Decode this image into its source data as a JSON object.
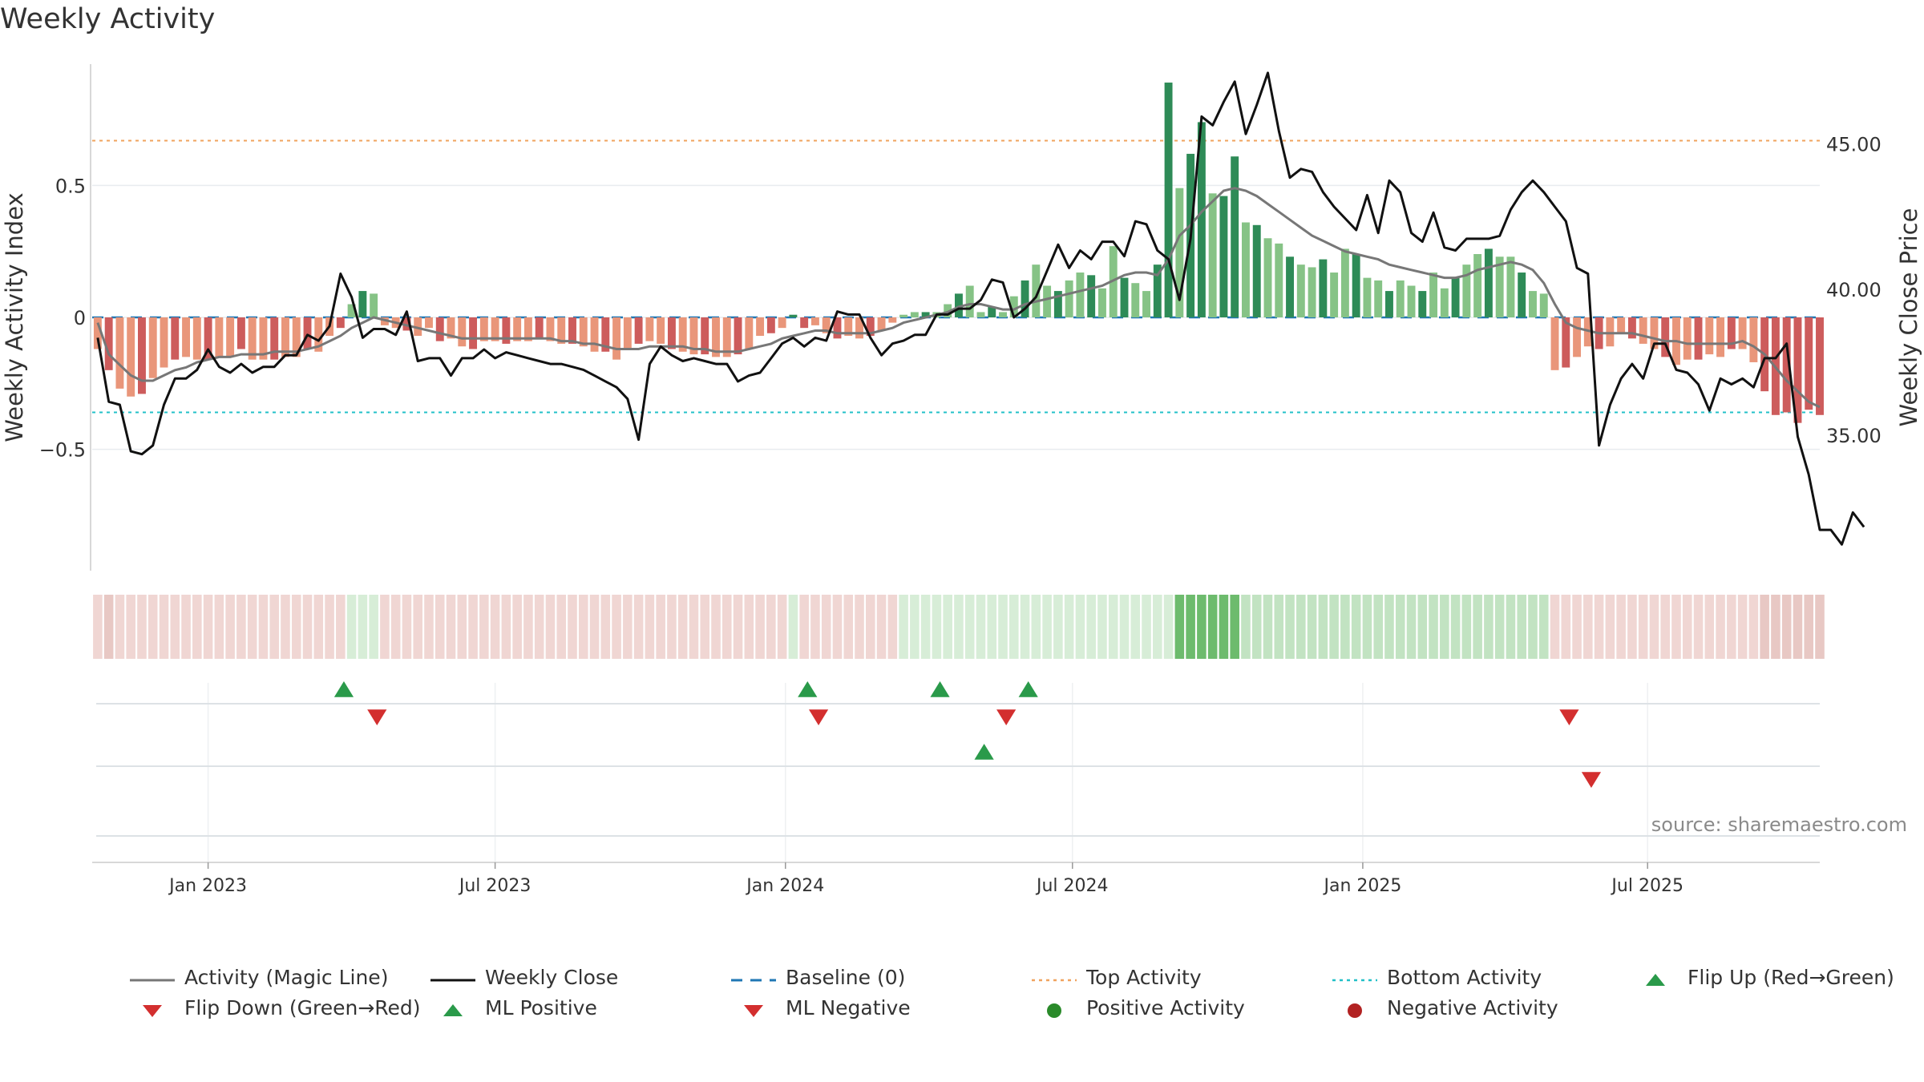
{
  "title": "Weekly Activity",
  "source": "source: sharemaestro.com",
  "colors": {
    "magic_line": "#777777",
    "close": "#111111",
    "baseline": "#1f77b4",
    "top": "#f0a35e",
    "bottom": "#22c0c8",
    "up": "#2a9a4a",
    "down": "#d32f2f",
    "pos_dark": "#2e8b57",
    "pos_light": "#86c386",
    "neg_dark": "#cd5c5c",
    "neg_light": "#e9967a"
  },
  "legend": [
    {
      "label": "Activity (Magic Line)",
      "kind": "line",
      "color": "#777777"
    },
    {
      "label": "Weekly Close",
      "kind": "line",
      "color": "#111111"
    },
    {
      "label": "Baseline (0)",
      "kind": "dash",
      "color": "#1f77b4"
    },
    {
      "label": "Top Activity",
      "kind": "dot",
      "color": "#f0a35e"
    },
    {
      "label": "Bottom Activity",
      "kind": "dot",
      "color": "#22c0c8"
    },
    {
      "label": "Flip Up (Red→Green)",
      "kind": "tri-up",
      "color": "#2a9a4a"
    },
    {
      "label": "Flip Down (Green→Red)",
      "kind": "tri-down",
      "color": "#d32f2f"
    },
    {
      "label": "ML Positive",
      "kind": "tri-up",
      "color": "#2a9a4a"
    },
    {
      "label": "ML Negative",
      "kind": "tri-down",
      "color": "#d32f2f"
    },
    {
      "label": "Positive Activity",
      "kind": "circle",
      "color": "#2a8a2a"
    },
    {
      "label": "Negative Activity",
      "kind": "circle",
      "color": "#b22222"
    }
  ],
  "chart_data": {
    "type": "bar",
    "title": "Weekly Activity",
    "ylabel": "Weekly Activity Index",
    "y2label": "Weekly Close Price",
    "ylim": [
      -0.96,
      0.96
    ],
    "y2lim": [
      30.7,
      48.1
    ],
    "yticks": [
      -0.5,
      0,
      0.5
    ],
    "ytick_labels": [
      "−0.5",
      "0",
      "0.5"
    ],
    "y2ticks": [
      35,
      40,
      45
    ],
    "y2tick_labels": [
      "35.00",
      "40.00",
      "45.00"
    ],
    "x_start": "2022-10-24",
    "x_end": "2025-09-15",
    "xticks": [
      "Jan 2023",
      "Jul 2023",
      "Jan 2024",
      "Jul 2024",
      "Jan 2025",
      "Jul 2025"
    ],
    "xtick_weeks": [
      10,
      36,
      62.3,
      88.3,
      114.6,
      140.4
    ],
    "top_activity": 0.67,
    "bottom_activity": -0.36,
    "baseline": 0,
    "activity": [
      -0.12,
      -0.2,
      -0.27,
      -0.3,
      -0.29,
      -0.23,
      -0.19,
      -0.16,
      -0.15,
      -0.16,
      -0.16,
      -0.15,
      -0.15,
      -0.12,
      -0.16,
      -0.16,
      -0.16,
      -0.15,
      -0.15,
      -0.12,
      -0.13,
      -0.07,
      -0.04,
      0.05,
      0.1,
      0.09,
      -0.03,
      -0.04,
      -0.05,
      -0.07,
      -0.04,
      -0.09,
      -0.08,
      -0.11,
      -0.12,
      -0.09,
      -0.09,
      -0.1,
      -0.09,
      -0.09,
      -0.08,
      -0.09,
      -0.1,
      -0.1,
      -0.11,
      -0.13,
      -0.13,
      -0.16,
      -0.12,
      -0.1,
      -0.09,
      -0.1,
      -0.12,
      -0.13,
      -0.14,
      -0.14,
      -0.15,
      -0.15,
      -0.14,
      -0.12,
      -0.07,
      -0.06,
      -0.04,
      0.01,
      -0.04,
      -0.03,
      -0.06,
      -0.08,
      -0.07,
      -0.08,
      -0.07,
      -0.05,
      -0.02,
      0.01,
      0.02,
      0.02,
      0.02,
      0.05,
      0.09,
      0.12,
      0.02,
      0.04,
      0.02,
      0.08,
      0.14,
      0.2,
      0.12,
      0.1,
      0.14,
      0.17,
      0.16,
      0.11,
      0.27,
      0.15,
      0.13,
      0.1,
      0.2,
      0.89,
      0.49,
      0.62,
      0.74,
      0.47,
      0.46,
      0.61,
      0.36,
      0.35,
      0.3,
      0.28,
      0.23,
      0.2,
      0.19,
      0.22,
      0.17,
      0.26,
      0.24,
      0.15,
      0.14,
      0.1,
      0.14,
      0.12,
      0.1,
      0.17,
      0.11,
      0.15,
      0.2,
      0.24,
      0.26,
      0.23,
      0.23,
      0.17,
      0.1,
      0.09,
      -0.2,
      -0.19,
      -0.15,
      -0.11,
      -0.12,
      -0.11,
      -0.06,
      -0.08,
      -0.1,
      -0.12,
      -0.15,
      -0.18,
      -0.16,
      -0.16,
      -0.14,
      -0.15,
      -0.12,
      -0.12,
      -0.17,
      -0.28,
      -0.37,
      -0.36,
      -0.4,
      -0.35,
      -0.37
    ],
    "magic_line": [
      -0.02,
      -0.14,
      -0.18,
      -0.22,
      -0.24,
      -0.24,
      -0.22,
      -0.2,
      -0.19,
      -0.17,
      -0.16,
      -0.15,
      -0.15,
      -0.14,
      -0.14,
      -0.14,
      -0.13,
      -0.13,
      -0.13,
      -0.12,
      -0.11,
      -0.09,
      -0.07,
      -0.04,
      -0.02,
      -0.0,
      -0.01,
      -0.02,
      -0.03,
      -0.04,
      -0.05,
      -0.06,
      -0.07,
      -0.08,
      -0.08,
      -0.08,
      -0.08,
      -0.08,
      -0.08,
      -0.08,
      -0.08,
      -0.08,
      -0.09,
      -0.09,
      -0.1,
      -0.1,
      -0.11,
      -0.12,
      -0.12,
      -0.12,
      -0.11,
      -0.11,
      -0.11,
      -0.11,
      -0.12,
      -0.12,
      -0.13,
      -0.13,
      -0.13,
      -0.12,
      -0.11,
      -0.1,
      -0.08,
      -0.07,
      -0.06,
      -0.05,
      -0.05,
      -0.06,
      -0.06,
      -0.06,
      -0.06,
      -0.05,
      -0.04,
      -0.02,
      -0.01,
      0.0,
      0.01,
      0.02,
      0.04,
      0.05,
      0.05,
      0.04,
      0.03,
      0.03,
      0.05,
      0.06,
      0.07,
      0.08,
      0.09,
      0.1,
      0.11,
      0.12,
      0.14,
      0.16,
      0.17,
      0.17,
      0.16,
      0.22,
      0.31,
      0.35,
      0.4,
      0.44,
      0.48,
      0.49,
      0.48,
      0.46,
      0.43,
      0.4,
      0.37,
      0.34,
      0.31,
      0.29,
      0.27,
      0.25,
      0.24,
      0.23,
      0.22,
      0.2,
      0.19,
      0.18,
      0.17,
      0.16,
      0.15,
      0.15,
      0.16,
      0.18,
      0.19,
      0.2,
      0.21,
      0.2,
      0.18,
      0.13,
      0.05,
      -0.02,
      -0.04,
      -0.05,
      -0.06,
      -0.06,
      -0.06,
      -0.06,
      -0.07,
      -0.08,
      -0.09,
      -0.09,
      -0.1,
      -0.1,
      -0.1,
      -0.1,
      -0.1,
      -0.09,
      -0.11,
      -0.14,
      -0.19,
      -0.24,
      -0.28,
      -0.32,
      -0.34
    ],
    "weekly_close": [
      38.7,
      36.5,
      36.4,
      34.8,
      34.7,
      35.0,
      36.4,
      37.3,
      37.3,
      37.6,
      38.3,
      37.7,
      37.5,
      37.8,
      37.5,
      37.7,
      37.7,
      38.1,
      38.1,
      38.8,
      38.6,
      39.1,
      40.9,
      40.1,
      38.7,
      39.0,
      39.0,
      38.8,
      39.6,
      37.9,
      38.0,
      38.0,
      37.4,
      38.0,
      38.0,
      38.3,
      38.0,
      38.2,
      38.1,
      38.0,
      37.9,
      37.8,
      37.8,
      37.7,
      37.6,
      37.4,
      37.2,
      37.0,
      36.6,
      35.2,
      37.8,
      38.4,
      38.1,
      37.9,
      38.0,
      37.9,
      37.8,
      37.8,
      37.2,
      37.4,
      37.5,
      38.0,
      38.5,
      38.7,
      38.4,
      38.7,
      38.6,
      39.6,
      39.5,
      39.5,
      38.7,
      38.1,
      38.5,
      38.6,
      38.8,
      38.8,
      39.5,
      39.5,
      39.7,
      39.7,
      40.0,
      40.7,
      40.6,
      39.4,
      39.7,
      40.1,
      41.0,
      41.9,
      41.1,
      41.7,
      41.4,
      42.0,
      42.0,
      41.5,
      42.7,
      42.6,
      41.7,
      41.4,
      40.0,
      42.1,
      46.3,
      46.0,
      46.8,
      47.5,
      45.7,
      46.7,
      47.8,
      45.8,
      44.2,
      44.5,
      44.4,
      43.7,
      43.2,
      42.8,
      42.4,
      43.6,
      42.3,
      44.1,
      43.7,
      42.3,
      42.0,
      43.0,
      41.8,
      41.7,
      42.1,
      42.1,
      42.1,
      42.2,
      43.1,
      43.7,
      44.1,
      43.7,
      43.2,
      42.7,
      41.1,
      40.9,
      35.0,
      36.4,
      37.3,
      37.8,
      37.3,
      38.5,
      38.5,
      37.6,
      37.5,
      37.1,
      36.2,
      37.3,
      37.1,
      37.3,
      37.0,
      38.0,
      38.0,
      38.5,
      35.3,
      34.0,
      32.1,
      32.1,
      31.6,
      32.7,
      32.2
    ],
    "strip_intensity": [
      1,
      2,
      1,
      1,
      1,
      1,
      1,
      1,
      1,
      1,
      1,
      1,
      1,
      1,
      1,
      1,
      1,
      1,
      1,
      1,
      1,
      1,
      1,
      1,
      1,
      1,
      1,
      1,
      1,
      1,
      1,
      1,
      1,
      1,
      1,
      1,
      1,
      1,
      1,
      1,
      1,
      1,
      1,
      1,
      1,
      1,
      1,
      1,
      1,
      1,
      1,
      1,
      1,
      1,
      1,
      1,
      1,
      1,
      1,
      1,
      1,
      1,
      1,
      1,
      1,
      1,
      1,
      1,
      1,
      1,
      1,
      1,
      1,
      1,
      1,
      1,
      1,
      1,
      1,
      1,
      1,
      1,
      1,
      1,
      1,
      1,
      1,
      1,
      1,
      1,
      1,
      1,
      1,
      1,
      1,
      1,
      1,
      1,
      3,
      3,
      3,
      3,
      3,
      3,
      2,
      2,
      2,
      2,
      2,
      2,
      2,
      2,
      2,
      2,
      2,
      2,
      2,
      2,
      2,
      2,
      2,
      2,
      2,
      2,
      2,
      2,
      2,
      2,
      2,
      2,
      2,
      2,
      1,
      1,
      1,
      1,
      1,
      1,
      1,
      1,
      1,
      1,
      1,
      1,
      1,
      1,
      1,
      1,
      1,
      1,
      1,
      2,
      2,
      2,
      2,
      2,
      2
    ],
    "flip_up": [
      22.3,
      64.3,
      76.3,
      84.3
    ],
    "flip_down": [
      25.3,
      65.3,
      82.3,
      133.3
    ],
    "ml_positive": [
      80.3
    ],
    "ml_negative": [
      135.3
    ]
  }
}
